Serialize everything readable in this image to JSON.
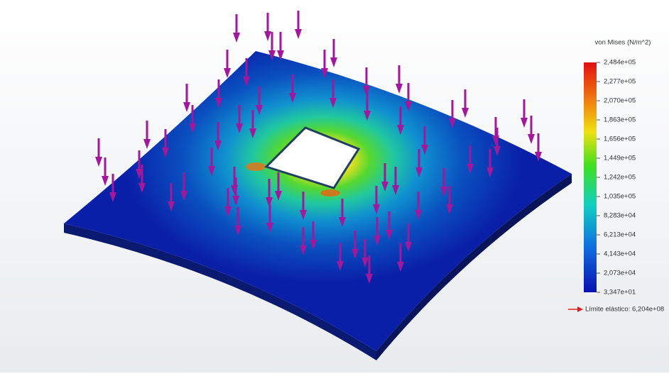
{
  "legend": {
    "title": "von Mises (N/m^2)",
    "labels": [
      "2,484e+05",
      "2,277e+05",
      "2,070e+05",
      "1,863e+05",
      "1,656e+05",
      "1,449e+05",
      "1,242e+05",
      "1,035e+05",
      "8,283e+04",
      "6,213e+04",
      "4,143e+04",
      "2,073e+04",
      "3,347e+01"
    ]
  },
  "yield_limit": "Límite elástico: 6,204e+08"
}
